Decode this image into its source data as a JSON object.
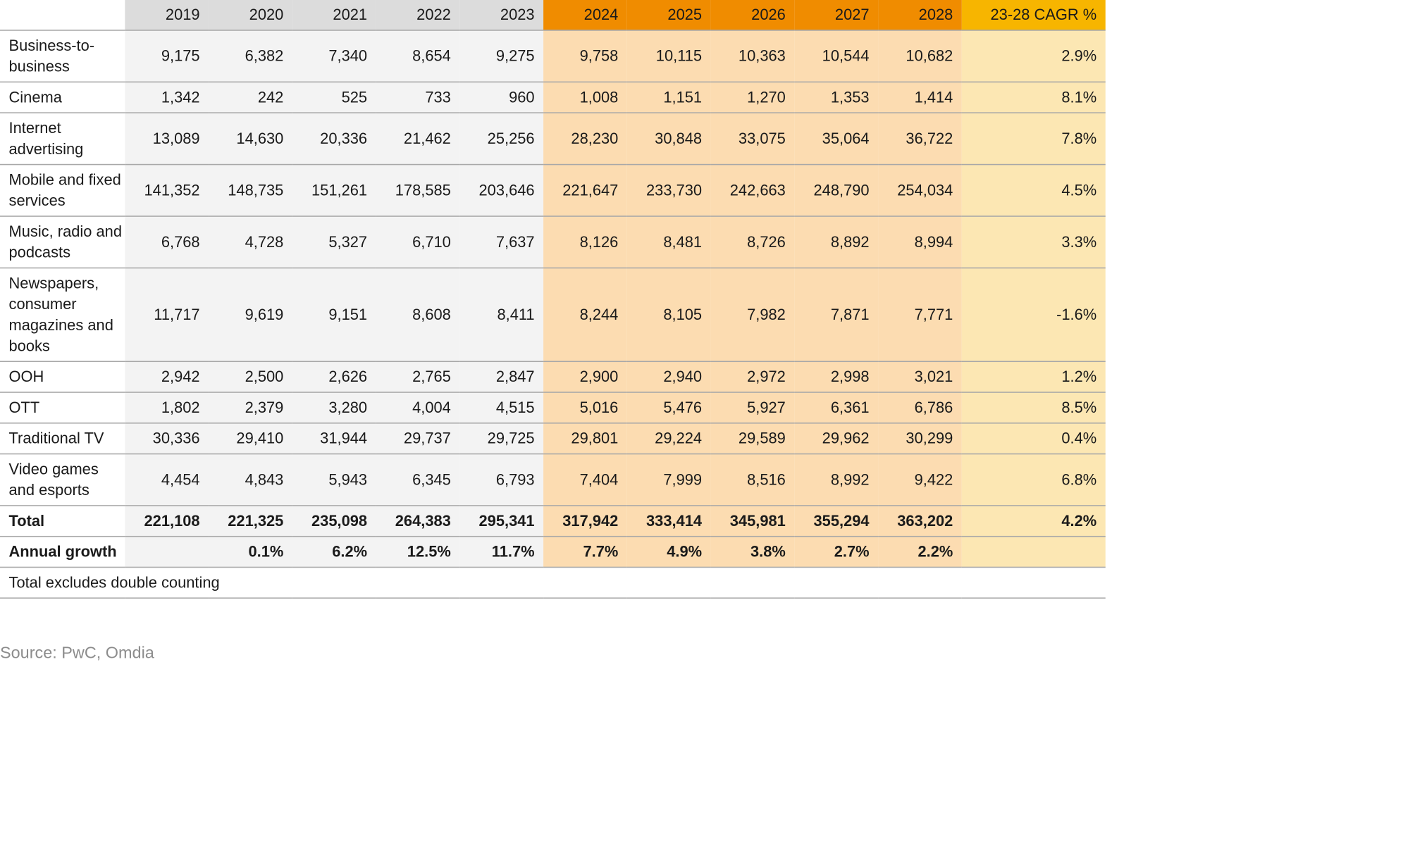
{
  "chart_data": {
    "type": "table",
    "columns": {
      "historical": [
        "2019",
        "2020",
        "2021",
        "2022",
        "2023"
      ],
      "forecast": [
        "2024",
        "2025",
        "2026",
        "2027",
        "2028"
      ],
      "cagr": "23-28 CAGR %"
    },
    "rows": [
      {
        "label": "Business-to-business",
        "values": [
          "9,175",
          "6,382",
          "7,340",
          "8,654",
          "9,275",
          "9,758",
          "10,115",
          "10,363",
          "10,544",
          "10,682"
        ],
        "cagr": "2.9%"
      },
      {
        "label": "Cinema",
        "values": [
          "1,342",
          "242",
          "525",
          "733",
          "960",
          "1,008",
          "1,151",
          "1,270",
          "1,353",
          "1,414"
        ],
        "cagr": "8.1%"
      },
      {
        "label": "Internet advertising",
        "values": [
          "13,089",
          "14,630",
          "20,336",
          "21,462",
          "25,256",
          "28,230",
          "30,848",
          "33,075",
          "35,064",
          "36,722"
        ],
        "cagr": "7.8%"
      },
      {
        "label": "Mobile and fixed services",
        "values": [
          "141,352",
          "148,735",
          "151,261",
          "178,585",
          "203,646",
          "221,647",
          "233,730",
          "242,663",
          "248,790",
          "254,034"
        ],
        "cagr": "4.5%"
      },
      {
        "label": "Music, radio and podcasts",
        "values": [
          "6,768",
          "4,728",
          "5,327",
          "6,710",
          "7,637",
          "8,126",
          "8,481",
          "8,726",
          "8,892",
          "8,994"
        ],
        "cagr": "3.3%"
      },
      {
        "label": "Newspapers, consumer magazines and books",
        "values": [
          "11,717",
          "9,619",
          "9,151",
          "8,608",
          "8,411",
          "8,244",
          "8,105",
          "7,982",
          "7,871",
          "7,771"
        ],
        "cagr": "-1.6%"
      },
      {
        "label": "OOH",
        "values": [
          "2,942",
          "2,500",
          "2,626",
          "2,765",
          "2,847",
          "2,900",
          "2,940",
          "2,972",
          "2,998",
          "3,021"
        ],
        "cagr": "1.2%"
      },
      {
        "label": "OTT",
        "values": [
          "1,802",
          "2,379",
          "3,280",
          "4,004",
          "4,515",
          "5,016",
          "5,476",
          "5,927",
          "6,361",
          "6,786"
        ],
        "cagr": "8.5%"
      },
      {
        "label": "Traditional TV",
        "values": [
          "30,336",
          "29,410",
          "31,944",
          "29,737",
          "29,725",
          "29,801",
          "29,224",
          "29,589",
          "29,962",
          "30,299"
        ],
        "cagr": "0.4%"
      },
      {
        "label": "Video games and esports",
        "values": [
          "4,454",
          "4,843",
          "5,943",
          "6,345",
          "6,793",
          "7,404",
          "7,999",
          "8,516",
          "8,992",
          "9,422"
        ],
        "cagr": "6.8%"
      }
    ],
    "total": {
      "label": "Total",
      "values": [
        "221,108",
        "221,325",
        "235,098",
        "264,383",
        "295,341",
        "317,942",
        "333,414",
        "345,981",
        "355,294",
        "363,202"
      ],
      "cagr": "4.2%"
    },
    "growth": {
      "label": "Annual growth",
      "values": [
        "",
        "0.1%",
        "6.2%",
        "12.5%",
        "11.7%",
        "7.7%",
        "4.9%",
        "3.8%",
        "2.7%",
        "2.2%"
      ],
      "cagr": ""
    },
    "note": "Total excludes double counting",
    "source": "Source: PwC, Omdia"
  },
  "colors": {
    "header_historical": "#dcdcdc",
    "header_forecast": "#f08c00",
    "header_cagr": "#f7b500",
    "body_historical": "#f3f3f3",
    "body_forecast": "#fcdcb1",
    "body_cagr": "#fce7b3"
  }
}
